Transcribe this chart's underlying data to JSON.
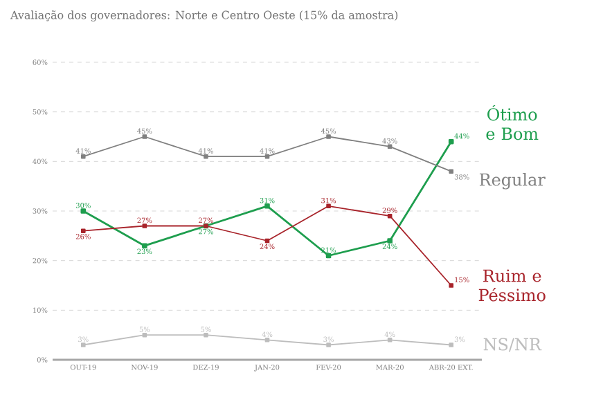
{
  "chart_data": {
    "type": "line",
    "title": "Avaliação dos governadores: Norte e Centro Oeste (15% da amostra)",
    "categories": [
      "OUT-19",
      "NOV-19",
      "DEZ-19",
      "JAN-20",
      "FEV-20",
      "MAR-20",
      "ABR-20 EXT."
    ],
    "series": [
      {
        "name": "Ótimo e Bom",
        "color": "#1e9e4e",
        "values": [
          30,
          23,
          27,
          31,
          21,
          24,
          44
        ],
        "value_labels": [
          "30%",
          "23%",
          "27%",
          "31%",
          "21%",
          "24%",
          "44%"
        ]
      },
      {
        "name": "Regular",
        "color": "#808080",
        "values": [
          41,
          45,
          41,
          41,
          45,
          43,
          38
        ],
        "value_labels": [
          "41%",
          "45%",
          "41%",
          "41%",
          "45%",
          "43%",
          "38%"
        ]
      },
      {
        "name": "Ruim e Péssimo",
        "color": "#a8232a",
        "values": [
          26,
          27,
          27,
          24,
          31,
          29,
          15
        ],
        "value_labels": [
          "26%",
          "27%",
          "27%",
          "24%",
          "31%",
          "29%",
          "15%"
        ]
      },
      {
        "name": "NS/NR",
        "color": "#bdbdbd",
        "values": [
          3,
          5,
          5,
          4,
          3,
          4,
          3
        ],
        "value_labels": [
          "3%",
          "5%",
          "5%",
          "4%",
          "3%",
          "4%",
          "3%"
        ]
      }
    ],
    "ylim": [
      0,
      60
    ],
    "yticks": [
      {
        "value": 0,
        "label": "0%"
      },
      {
        "value": 10,
        "label": "10%"
      },
      {
        "value": 20,
        "label": "20%"
      },
      {
        "value": 30,
        "label": "30%"
      },
      {
        "value": 40,
        "label": "40%"
      },
      {
        "value": 50,
        "label": "50%"
      },
      {
        "value": 60,
        "label": "60%"
      }
    ],
    "grid": "y",
    "legend": false,
    "marker": "square",
    "line_style": "solid"
  }
}
